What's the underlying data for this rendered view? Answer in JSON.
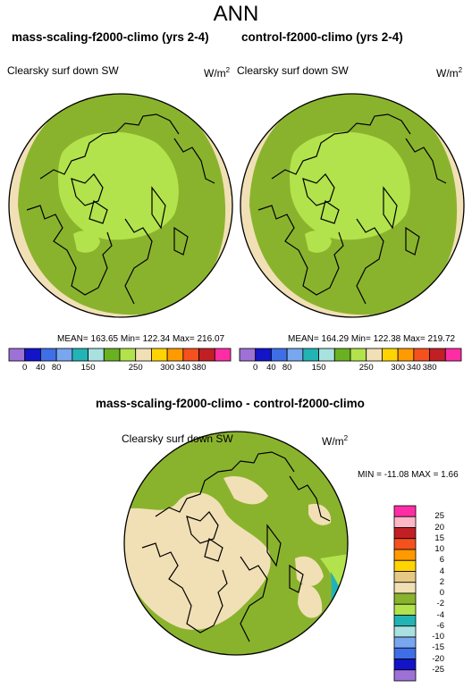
{
  "figure": {
    "title": "ANN"
  },
  "panels": [
    {
      "title": "mass-scaling-f2000-climo (yrs 2-4)",
      "variable": "Clearsky surf down SW",
      "units_base": "W/m",
      "units_exp": "2",
      "stats": "MEAN= 163.65  Min= 122.34  Max= 216.07"
    },
    {
      "title": "control-f2000-climo (yrs 2-4)",
      "variable": "Clearsky surf down SW",
      "units_base": "W/m",
      "units_exp": "2",
      "stats": "MEAN= 164.29  Min= 122.38  Max= 219.72"
    },
    {
      "title": "mass-scaling-f2000-climo - control-f2000-climo",
      "variable": "Clearsky surf down SW",
      "units_base": "W/m",
      "units_exp": "2",
      "stats": "MIN = -11.08 MAX =   1.66"
    }
  ],
  "colorbar_abs": {
    "colors": [
      "#9d71d6",
      "#1313c8",
      "#3f6fe6",
      "#78a7f0",
      "#22b4b4",
      "#a8e1e0",
      "#6ab122",
      "#b2e34c",
      "#f1e0b5",
      "#ffd400",
      "#ff9a00",
      "#f4511e",
      "#c21f25",
      "#ff2da5"
    ],
    "labels": [
      "0",
      "40",
      "80",
      "150",
      "250",
      "300",
      "340",
      "380"
    ],
    "labels_all": [
      "0",
      "40",
      "80",
      "150",
      "250",
      "300",
      "340",
      "380"
    ]
  },
  "colorbar_diff": {
    "colors": [
      "#ff2da5",
      "#ffb6c6",
      "#c21f25",
      "#f4511e",
      "#ff9a00",
      "#ffd400",
      "#e6c985",
      "#f1e0b5",
      "#8ab32d",
      "#b2e34c",
      "#22b4b4",
      "#a8e1e0",
      "#78a7f0",
      "#3f6fe6",
      "#1313c8",
      "#9d71d6"
    ],
    "labels": [
      "25",
      "20",
      "15",
      "10",
      "6",
      "4",
      "2",
      "0",
      "-2",
      "-4",
      "-6",
      "-10",
      "-15",
      "-20",
      "-25"
    ]
  },
  "map_colors": {
    "green_dark": "#8ab32d",
    "green_light": "#b2e34c",
    "beige": "#f1e0b5",
    "teal": "#22b4b4",
    "light_cyan": "#a8e1e0"
  }
}
